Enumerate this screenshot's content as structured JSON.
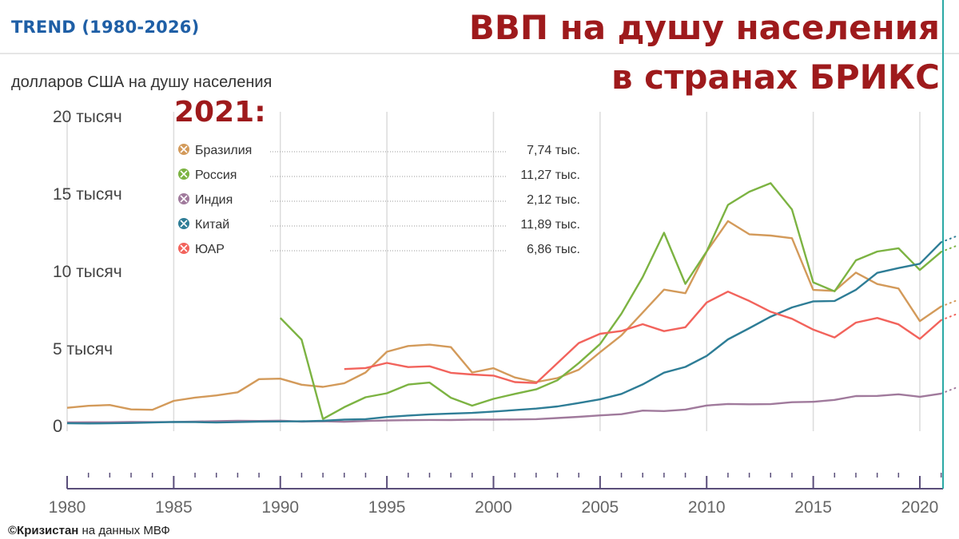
{
  "header": {
    "trend": "TREND (1980-2026)",
    "title_line1": "ВВП на душу населения",
    "title_line2": "в странах БРИКС",
    "subtitle": "долларов США на душу населения",
    "year_label": "2021:"
  },
  "source": {
    "brand": "©Кризистан",
    "text": " на данных МВФ"
  },
  "chart_data": {
    "type": "line",
    "ylim": [
      0,
      20000
    ],
    "xlim": [
      1980,
      2021
    ],
    "y_ticks": [
      {
        "value": 0,
        "label": "0"
      },
      {
        "value": 5000,
        "label": "5 тысяч"
      },
      {
        "value": 10000,
        "label": "10 тысяч"
      },
      {
        "value": 15000,
        "label": "15 тысяч"
      },
      {
        "value": 20000,
        "label": "20 тысяч"
      }
    ],
    "x_ticks": [
      1980,
      1985,
      1990,
      1995,
      2000,
      2005,
      2010,
      2015,
      2020
    ],
    "grid": true,
    "legend": {
      "position": "top-left",
      "entries": [
        {
          "name": "Бразилия",
          "value": "7,74 тыс.",
          "color": "#d39a5a"
        },
        {
          "name": "Россия",
          "value": "11,27 тыс.",
          "color": "#7cb342"
        },
        {
          "name": "Индия",
          "value": "2,12 тыс.",
          "color": "#a07a9c"
        },
        {
          "name": "Китай",
          "value": "11,89 тыс.",
          "color": "#2e7d96"
        },
        {
          "name": "ЮАР",
          "value": "6,86 тыс.",
          "color": "#f2635c"
        }
      ]
    },
    "series": [
      {
        "name": "Бразилия",
        "color": "#d39a5a",
        "x": [
          1980,
          1981,
          1982,
          1983,
          1984,
          1985,
          1986,
          1987,
          1988,
          1989,
          1990,
          1991,
          1992,
          1993,
          1994,
          1995,
          1996,
          1997,
          1998,
          1999,
          2000,
          2001,
          2002,
          2003,
          2004,
          2005,
          2006,
          2007,
          2008,
          2009,
          2010,
          2011,
          2012,
          2013,
          2014,
          2015,
          2016,
          2017,
          2018,
          2019,
          2020,
          2021
        ],
        "values": [
          1200,
          1330,
          1380,
          1100,
          1070,
          1650,
          1860,
          2000,
          2200,
          3050,
          3080,
          2690,
          2550,
          2790,
          3480,
          4820,
          5190,
          5280,
          5120,
          3480,
          3760,
          3160,
          2860,
          3120,
          3660,
          4790,
          5880,
          7350,
          8830,
          8600,
          11290,
          13250,
          12400,
          12320,
          12150,
          8810,
          8750,
          9930,
          9190,
          8900,
          6800,
          7740
        ]
      },
      {
        "name": "Россия",
        "color": "#7cb342",
        "x": [
          1990,
          1991,
          1992,
          1993,
          1994,
          1995,
          1996,
          1997,
          1998,
          1999,
          2000,
          2001,
          2002,
          2003,
          2004,
          2005,
          2006,
          2007,
          2008,
          2009,
          2010,
          2011,
          2012,
          2013,
          2014,
          2015,
          2016,
          2017,
          2018,
          2019,
          2020,
          2021
        ],
        "values": [
          7000,
          5600,
          480,
          1240,
          1880,
          2140,
          2700,
          2830,
          1850,
          1340,
          1780,
          2100,
          2390,
          2980,
          4090,
          5320,
          7280,
          9640,
          12500,
          9200,
          11300,
          14300,
          15150,
          15700,
          14000,
          9300,
          8720,
          10720,
          11290,
          11500,
          10100,
          11270
        ]
      },
      {
        "name": "Индия",
        "color": "#a07a9c",
        "x": [
          1980,
          1981,
          1982,
          1983,
          1984,
          1985,
          1986,
          1987,
          1988,
          1989,
          1990,
          1991,
          1992,
          1993,
          1994,
          1995,
          1996,
          1997,
          1998,
          1999,
          2000,
          2001,
          2002,
          2003,
          2004,
          2005,
          2006,
          2007,
          2008,
          2009,
          2010,
          2011,
          2012,
          2013,
          2014,
          2015,
          2016,
          2017,
          2018,
          2019,
          2020,
          2021
        ],
        "values": [
          260,
          270,
          270,
          290,
          280,
          290,
          310,
          340,
          360,
          350,
          370,
          310,
          330,
          300,
          350,
          380,
          400,
          420,
          410,
          440,
          440,
          450,
          470,
          540,
          620,
          710,
          790,
          1020,
          990,
          1090,
          1350,
          1450,
          1430,
          1440,
          1560,
          1590,
          1710,
          1960,
          1970,
          2070,
          1910,
          2120
        ]
      },
      {
        "name": "Китай",
        "color": "#2e7d96",
        "x": [
          1980,
          1981,
          1982,
          1983,
          1984,
          1985,
          1986,
          1987,
          1988,
          1989,
          1990,
          1991,
          1992,
          1993,
          1994,
          1995,
          1996,
          1997,
          1998,
          1999,
          2000,
          2001,
          2002,
          2003,
          2004,
          2005,
          2006,
          2007,
          2008,
          2009,
          2010,
          2011,
          2012,
          2013,
          2014,
          2015,
          2016,
          2017,
          2018,
          2019,
          2020,
          2021
        ],
        "values": [
          200,
          190,
          200,
          220,
          250,
          290,
          280,
          250,
          280,
          310,
          320,
          330,
          360,
          440,
          470,
          610,
          700,
          780,
          830,
          870,
          960,
          1050,
          1150,
          1290,
          1510,
          1750,
          2100,
          2710,
          3470,
          3840,
          4550,
          5620,
          6340,
          7080,
          7680,
          8070,
          8100,
          8820,
          9910,
          10220,
          10500,
          11890
        ]
      },
      {
        "name": "ЮАР",
        "color": "#f2635c",
        "x": [
          1993,
          1994,
          1995,
          1996,
          1997,
          1998,
          1999,
          2000,
          2001,
          2002,
          2003,
          2004,
          2005,
          2006,
          2007,
          2008,
          2009,
          2010,
          2011,
          2012,
          2013,
          2014,
          2015,
          2016,
          2017,
          2018,
          2019,
          2020,
          2021
        ],
        "values": [
          3700,
          3770,
          4100,
          3830,
          3880,
          3460,
          3350,
          3280,
          2860,
          2800,
          4080,
          5380,
          5980,
          6160,
          6600,
          6150,
          6400,
          8000,
          8700,
          8100,
          7400,
          6950,
          6250,
          5740,
          6700,
          7000,
          6590,
          5650,
          6860
        ]
      }
    ]
  }
}
